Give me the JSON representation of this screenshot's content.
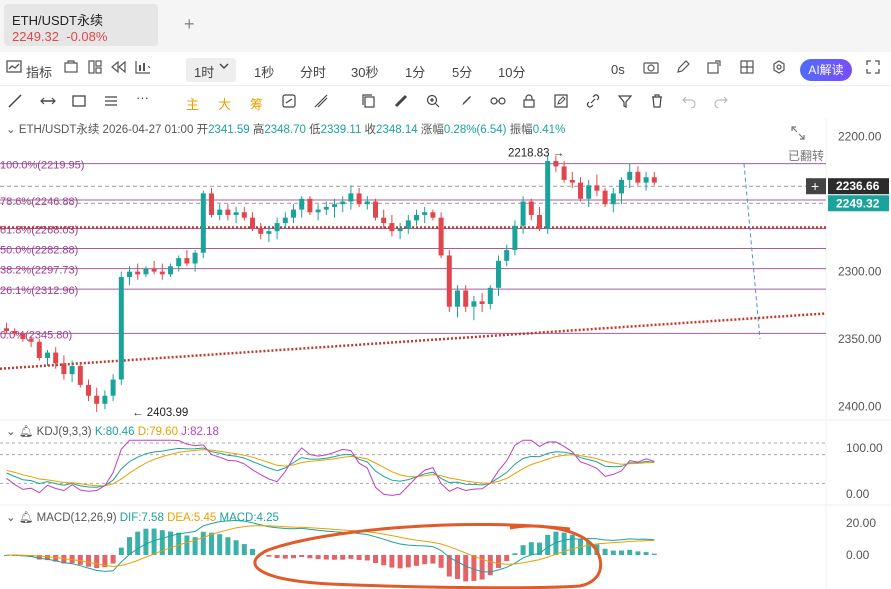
{
  "tab": {
    "title": "ETH/USDT永续",
    "price": "2249.32",
    "change": "-0.08%",
    "add": "+"
  },
  "toolbar": {
    "indicator": "指标",
    "timeframes": [
      "1时",
      "1秒",
      "分时",
      "30秒",
      "1分",
      "5分",
      "10分"
    ],
    "countdown": "0s",
    "ai": "AI解读"
  },
  "drawbar": {
    "labels": [
      "主",
      "大",
      "筹"
    ]
  },
  "info": {
    "symbol": "ETH/USDT永续",
    "time": "2026-04-27 01:00",
    "open_label": "开",
    "open": "2341.59",
    "high_label": "高",
    "high": "2348.70",
    "low_label": "低",
    "low": "2339.11",
    "close_label": "收",
    "close": "2348.14",
    "chg_label": "涨幅",
    "chg": "0.28%(6.54)",
    "amp_label": "振幅",
    "amp": "0.41%"
  },
  "flip_label": "已翻转",
  "kdj": {
    "name": "KDJ(9,3,3)",
    "k": "K:80.46",
    "d": "D:79.60",
    "j": "J:82.18"
  },
  "macd": {
    "name": "MACD(12,26,9)",
    "dif": "DIF:7.58",
    "dea": "DEA:5.45",
    "macd": "MACD:4.25"
  },
  "colors": {
    "up": "#1aa39a",
    "down": "#e0474c",
    "fib": "#9b3f8f",
    "trend": "#c0392b",
    "circle": "#e05a2a"
  },
  "chart_data": {
    "type": "candlestick",
    "inverted_y": true,
    "price_axis": {
      "ticks": [
        "2200.00",
        "2250.00",
        "2300.00",
        "2350.00",
        "2400.00"
      ],
      "ylim": [
        2195,
        2410
      ]
    },
    "current_price": "2249.32",
    "crosshair_price": "2236.66",
    "annotations": {
      "high_marker": "2218.83",
      "low_marker": "2403.99"
    },
    "fib_levels": [
      {
        "label": "100.0%(2219.95)",
        "price": 2219.95
      },
      {
        "label": "78.6%(2246.88)",
        "price": 2246.88
      },
      {
        "label": "61.8%(2268.03)",
        "price": 2268.03
      },
      {
        "label": "50.0%(2282.88)",
        "price": 2282.88
      },
      {
        "label": "38.2%(2297.73)",
        "price": 2297.73
      },
      {
        "label": "26.1%(2312.96)",
        "price": 2312.96
      },
      {
        "label": "0.0%(2345.80)",
        "price": 2345.8
      }
    ],
    "candles": [
      [
        2342,
        2346,
        2338,
        2344
      ],
      [
        2344,
        2348,
        2342,
        2346
      ],
      [
        2346,
        2352,
        2344,
        2350
      ],
      [
        2350,
        2356,
        2348,
        2352
      ],
      [
        2352,
        2366,
        2350,
        2364
      ],
      [
        2364,
        2370,
        2358,
        2360
      ],
      [
        2360,
        2372,
        2356,
        2368
      ],
      [
        2368,
        2380,
        2362,
        2376
      ],
      [
        2376,
        2382,
        2366,
        2370
      ],
      [
        2370,
        2386,
        2368,
        2384
      ],
      [
        2384,
        2396,
        2380,
        2392
      ],
      [
        2392,
        2404,
        2386,
        2398
      ],
      [
        2398,
        2402,
        2388,
        2392
      ],
      [
        2392,
        2396,
        2376,
        2380
      ],
      [
        2380,
        2384,
        2300,
        2304
      ],
      [
        2304,
        2310,
        2296,
        2300
      ],
      [
        2300,
        2306,
        2294,
        2302
      ],
      [
        2302,
        2304,
        2296,
        2298
      ],
      [
        2298,
        2302,
        2292,
        2300
      ],
      [
        2300,
        2306,
        2294,
        2302
      ],
      [
        2302,
        2304,
        2294,
        2296
      ],
      [
        2296,
        2300,
        2288,
        2290
      ],
      [
        2290,
        2296,
        2284,
        2294
      ],
      [
        2294,
        2300,
        2284,
        2286
      ],
      [
        2286,
        2290,
        2240,
        2242
      ],
      [
        2242,
        2260,
        2238,
        2258
      ],
      [
        2258,
        2262,
        2250,
        2254
      ],
      [
        2254,
        2262,
        2250,
        2258
      ],
      [
        2258,
        2264,
        2252,
        2256
      ],
      [
        2256,
        2262,
        2252,
        2260
      ],
      [
        2260,
        2270,
        2256,
        2268
      ],
      [
        2268,
        2276,
        2264,
        2272
      ],
      [
        2272,
        2278,
        2266,
        2270
      ],
      [
        2270,
        2276,
        2260,
        2264
      ],
      [
        2264,
        2268,
        2256,
        2260
      ],
      [
        2260,
        2264,
        2250,
        2254
      ],
      [
        2254,
        2260,
        2244,
        2246
      ],
      [
        2246,
        2258,
        2244,
        2256
      ],
      [
        2256,
        2262,
        2250,
        2254
      ],
      [
        2254,
        2258,
        2248,
        2252
      ],
      [
        2252,
        2260,
        2246,
        2250
      ],
      [
        2250,
        2256,
        2244,
        2248
      ],
      [
        2248,
        2254,
        2236,
        2242
      ],
      [
        2242,
        2252,
        2238,
        2250
      ],
      [
        2250,
        2254,
        2244,
        2248
      ],
      [
        2248,
        2262,
        2246,
        2260
      ],
      [
        2260,
        2268,
        2254,
        2264
      ],
      [
        2264,
        2274,
        2258,
        2270
      ],
      [
        2270,
        2276,
        2264,
        2268
      ],
      [
        2268,
        2272,
        2258,
        2262
      ],
      [
        2262,
        2266,
        2254,
        2258
      ],
      [
        2258,
        2264,
        2252,
        2256
      ],
      [
        2256,
        2262,
        2254,
        2260
      ],
      [
        2260,
        2290,
        2256,
        2288
      ],
      [
        2288,
        2330,
        2284,
        2326
      ],
      [
        2326,
        2334,
        2310,
        2314
      ],
      [
        2314,
        2330,
        2310,
        2326
      ],
      [
        2326,
        2336,
        2318,
        2322
      ],
      [
        2322,
        2330,
        2316,
        2324
      ],
      [
        2324,
        2328,
        2310,
        2312
      ],
      [
        2312,
        2318,
        2288,
        2292
      ],
      [
        2292,
        2296,
        2280,
        2284
      ],
      [
        2284,
        2288,
        2262,
        2266
      ],
      [
        2266,
        2272,
        2244,
        2248
      ],
      [
        2248,
        2262,
        2246,
        2258
      ],
      [
        2258,
        2270,
        2252,
        2268
      ],
      [
        2268,
        2272,
        2214,
        2218
      ],
      [
        2218,
        2226,
        2214,
        2222
      ],
      [
        2222,
        2234,
        2218,
        2232
      ],
      [
        2232,
        2238,
        2226,
        2234
      ],
      [
        2234,
        2248,
        2230,
        2246
      ],
      [
        2246,
        2252,
        2232,
        2236
      ],
      [
        2236,
        2244,
        2228,
        2240
      ],
      [
        2240,
        2252,
        2238,
        2250
      ],
      [
        2250,
        2256,
        2238,
        2242
      ],
      [
        2242,
        2250,
        2230,
        2232
      ],
      [
        2232,
        2238,
        2220,
        2226
      ],
      [
        2226,
        2236,
        2222,
        2234
      ],
      [
        2234,
        2240,
        2226,
        2230
      ],
      [
        2230,
        2236,
        2226,
        2234
      ]
    ],
    "kdj_axis": [
      "100.00",
      "0.00"
    ],
    "macd_axis": [
      "20.00",
      "0.00"
    ]
  }
}
